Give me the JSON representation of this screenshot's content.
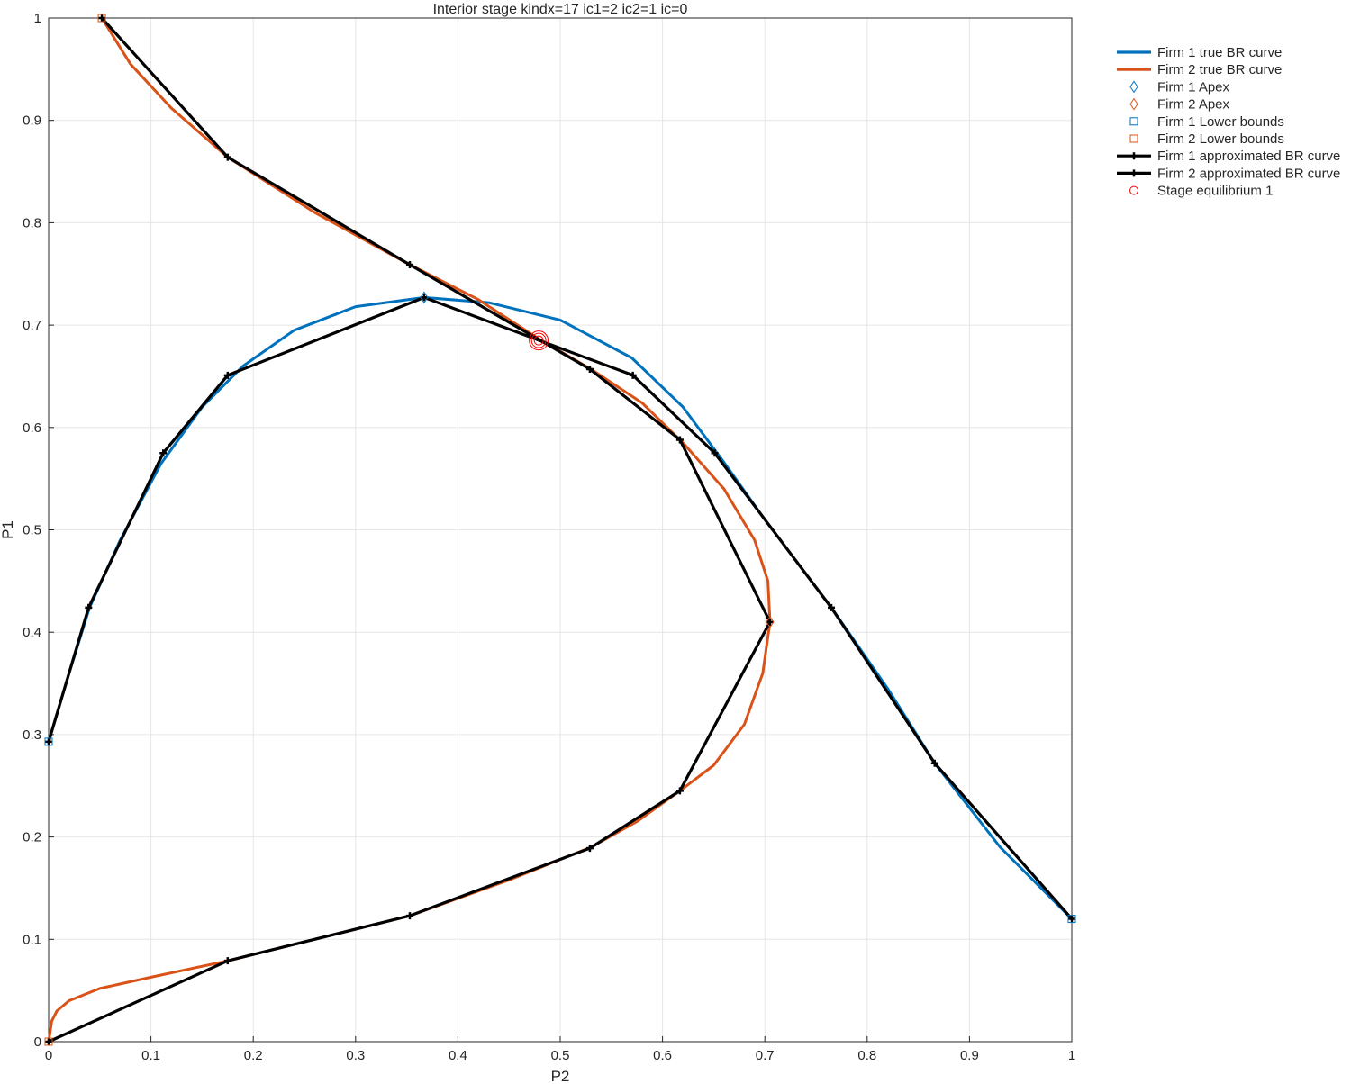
{
  "chart_data": {
    "type": "line",
    "title": "Interior stage kindx=17 ic1=2 ic2=1 ic=0",
    "xlabel": "P2",
    "ylabel": "P1",
    "xlim": [
      0,
      1
    ],
    "ylim": [
      0,
      1
    ],
    "xticks": [
      "0",
      "0.1",
      "0.2",
      "0.3",
      "0.4",
      "0.5",
      "0.6",
      "0.7",
      "0.8",
      "0.9",
      "1"
    ],
    "yticks": [
      "0",
      "0.1",
      "0.2",
      "0.3",
      "0.4",
      "0.5",
      "0.6",
      "0.7",
      "0.8",
      "0.9",
      "1"
    ],
    "grid": true,
    "legend_position": "outside-top-right",
    "series": [
      {
        "name": "Firm 1 true BR curve",
        "color": "#0072BD",
        "style": "line",
        "points": [
          [
            0.0,
            0.293
          ],
          [
            0.02,
            0.36
          ],
          [
            0.04,
            0.424
          ],
          [
            0.07,
            0.49
          ],
          [
            0.11,
            0.565
          ],
          [
            0.15,
            0.62
          ],
          [
            0.19,
            0.66
          ],
          [
            0.24,
            0.695
          ],
          [
            0.3,
            0.718
          ],
          [
            0.367,
            0.727
          ],
          [
            0.43,
            0.722
          ],
          [
            0.5,
            0.705
          ],
          [
            0.57,
            0.668
          ],
          [
            0.62,
            0.62
          ],
          [
            0.66,
            0.566
          ],
          [
            0.7,
            0.51
          ],
          [
            0.765,
            0.424
          ],
          [
            0.82,
            0.345
          ],
          [
            0.866,
            0.272
          ],
          [
            0.93,
            0.19
          ],
          [
            1.0,
            0.12
          ]
        ]
      },
      {
        "name": "Firm 2 true BR curve",
        "color": "#D95319",
        "style": "line",
        "points": [
          [
            0.052,
            1.0
          ],
          [
            0.08,
            0.955
          ],
          [
            0.12,
            0.912
          ],
          [
            0.175,
            0.864
          ],
          [
            0.26,
            0.81
          ],
          [
            0.353,
            0.759
          ],
          [
            0.42,
            0.725
          ],
          [
            0.48,
            0.686
          ],
          [
            0.53,
            0.657
          ],
          [
            0.58,
            0.624
          ],
          [
            0.62,
            0.585
          ],
          [
            0.66,
            0.54
          ],
          [
            0.69,
            0.49
          ],
          [
            0.703,
            0.45
          ],
          [
            0.705,
            0.41
          ],
          [
            0.698,
            0.36
          ],
          [
            0.68,
            0.31
          ],
          [
            0.65,
            0.27
          ],
          [
            0.617,
            0.245
          ],
          [
            0.575,
            0.215
          ],
          [
            0.53,
            0.19
          ],
          [
            0.45,
            0.158
          ],
          [
            0.353,
            0.123
          ],
          [
            0.26,
            0.1
          ],
          [
            0.175,
            0.079
          ],
          [
            0.1,
            0.063
          ],
          [
            0.05,
            0.052
          ],
          [
            0.02,
            0.04
          ],
          [
            0.008,
            0.03
          ],
          [
            0.003,
            0.02
          ],
          [
            0.0,
            0.0
          ]
        ]
      },
      {
        "name": "Firm 1 Apex",
        "color": "#0072BD",
        "style": "diamond",
        "points": [
          [
            0.367,
            0.727
          ]
        ]
      },
      {
        "name": "Firm 2 Apex",
        "color": "#D95319",
        "style": "diamond",
        "points": [
          [
            0.705,
            0.41
          ]
        ]
      },
      {
        "name": "Firm 1 Lower bounds",
        "color": "#0072BD",
        "style": "square",
        "points": [
          [
            0.0,
            0.293
          ],
          [
            1.0,
            0.12
          ]
        ]
      },
      {
        "name": "Firm 2 Lower bounds",
        "color": "#D95319",
        "style": "square",
        "points": [
          [
            0.052,
            1.0
          ],
          [
            0.0,
            0.0
          ]
        ]
      },
      {
        "name": "Firm 1 approximated BR curve",
        "color": "#000000",
        "style": "line-marker",
        "points": [
          [
            0.0,
            0.293
          ],
          [
            0.039,
            0.424
          ],
          [
            0.112,
            0.575
          ],
          [
            0.175,
            0.651
          ],
          [
            0.367,
            0.727
          ],
          [
            0.571,
            0.651
          ],
          [
            0.651,
            0.575
          ],
          [
            0.765,
            0.424
          ],
          [
            0.866,
            0.272
          ],
          [
            1.0,
            0.12
          ]
        ]
      },
      {
        "name": "Firm 2 approximated BR curve",
        "color": "#000000",
        "style": "line-marker",
        "points": [
          [
            0.052,
            1.0
          ],
          [
            0.175,
            0.864
          ],
          [
            0.353,
            0.759
          ],
          [
            0.529,
            0.657
          ],
          [
            0.617,
            0.588
          ],
          [
            0.705,
            0.41
          ],
          [
            0.617,
            0.245
          ],
          [
            0.529,
            0.189
          ],
          [
            0.353,
            0.123
          ],
          [
            0.175,
            0.079
          ],
          [
            0.0,
            0.0
          ]
        ]
      },
      {
        "name": "Stage equilibrium 1",
        "color": "#FF0000",
        "style": "circle",
        "points": [
          [
            0.479,
            0.685
          ]
        ]
      }
    ]
  }
}
